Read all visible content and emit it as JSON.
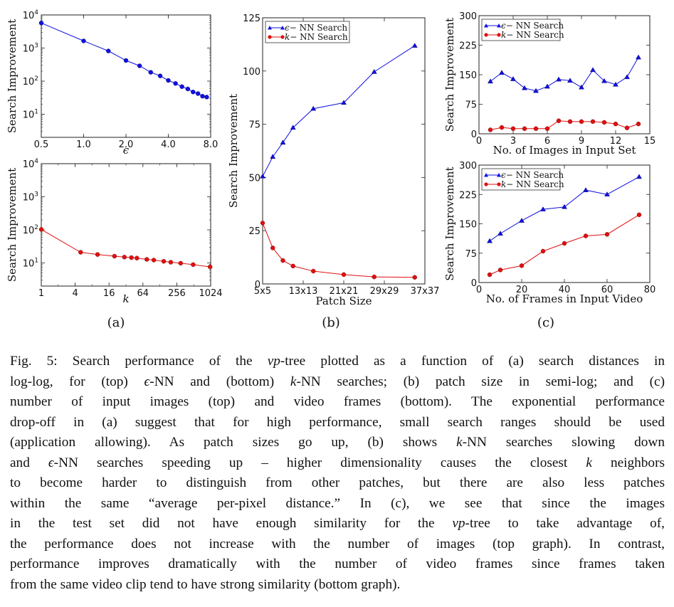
{
  "chart_data": [
    {
      "id": "a-top",
      "type": "line",
      "panel": "(a)",
      "title": "",
      "xlabel": "ϵ",
      "ylabel": "Search Improvement",
      "xscale": "log2",
      "yscale": "log10",
      "xlim": [
        0.5,
        8.0
      ],
      "ylim": [
        2,
        10000
      ],
      "xticks": [
        0.5,
        1.0,
        2.0,
        4.0,
        8.0
      ],
      "xtick_labels": [
        "0.5",
        "1.0",
        "2.0",
        "4.0",
        "8.0"
      ],
      "yticks": [
        10,
        100,
        1000,
        10000
      ],
      "ytick_labels": [
        [
          "10",
          "1"
        ],
        [
          "10",
          "2"
        ],
        [
          "10",
          "3"
        ],
        [
          "10",
          "4"
        ]
      ],
      "grid": false,
      "legend": null,
      "series": [
        {
          "name": "ϵ-NN Search",
          "color": "#1010e0",
          "marker": "circle",
          "x": [
            0.5,
            1.0,
            1.5,
            2.0,
            2.5,
            3.0,
            3.5,
            4.0,
            4.5,
            5.0,
            5.5,
            6.0,
            6.5,
            7.0,
            7.5
          ],
          "values": [
            5700,
            1640,
            815,
            420,
            290,
            185,
            144,
            105,
            85,
            68,
            58,
            47,
            42,
            35,
            33
          ]
        }
      ]
    },
    {
      "id": "a-bottom",
      "type": "line",
      "panel": "(a)",
      "title": "",
      "xlabel": "k",
      "ylabel": "Search Improvement",
      "xscale": "log2",
      "yscale": "log10",
      "xlim": [
        1,
        1024
      ],
      "ylim": [
        2,
        10000
      ],
      "xticks": [
        1,
        4,
        16,
        64,
        256,
        1024
      ],
      "xtick_labels": [
        "1",
        "4",
        "16",
        "64",
        "256",
        "1024"
      ],
      "yticks": [
        10,
        100,
        1000,
        10000
      ],
      "ytick_labels": [
        [
          "10",
          "1"
        ],
        [
          "10",
          "2"
        ],
        [
          "10",
          "3"
        ],
        [
          "10",
          "4"
        ]
      ],
      "grid": false,
      "legend": null,
      "series": [
        {
          "name": "k-NN Search",
          "color": "#e01010",
          "marker": "circle",
          "x": [
            1,
            5,
            10,
            20,
            30,
            40,
            50,
            75,
            100,
            150,
            200,
            300,
            500,
            1000
          ],
          "values": [
            103,
            21,
            18,
            16,
            15,
            14.5,
            14,
            12.8,
            12.2,
            11.2,
            10.5,
            9.8,
            8.9,
            7.6
          ]
        }
      ]
    },
    {
      "id": "b",
      "type": "line",
      "panel": "(b)",
      "title": "",
      "xlabel": "Patch Size",
      "ylabel": "Search Improvement",
      "xscale": "linear (patch side)",
      "yscale": "linear",
      "xlim": [
        5,
        37
      ],
      "ylim": [
        0,
        125
      ],
      "xticks": [
        5,
        13,
        21,
        29,
        37
      ],
      "xtick_labels": [
        "5x5",
        "13x13",
        "21x21",
        "29x29",
        "37x37"
      ],
      "yticks": [
        0,
        25,
        50,
        75,
        100,
        125
      ],
      "ytick_labels": [
        "0",
        "25",
        "50",
        "75",
        "100",
        "125"
      ],
      "grid": false,
      "legend": "top-left",
      "series": [
        {
          "name": "ϵ− NN Search",
          "color": "#1010e0",
          "marker": "triangle",
          "x": [
            5,
            7,
            9,
            11,
            15,
            21,
            27,
            35
          ],
          "values": [
            50.5,
            59.7,
            66.4,
            73.4,
            82.3,
            85.1,
            99.6,
            111.9
          ]
        },
        {
          "name": "k− NN Search",
          "color": "#e01010",
          "marker": "circle",
          "x": [
            5,
            7,
            9,
            11,
            15,
            21,
            27,
            35
          ],
          "values": [
            28.6,
            16.9,
            11.0,
            8.4,
            6.0,
            4.4,
            3.3,
            3.1
          ]
        }
      ]
    },
    {
      "id": "c-top",
      "type": "line",
      "panel": "(c)",
      "title": "",
      "xlabel": "No. of Images in Input Set",
      "ylabel": "Search Improvement",
      "xscale": "linear",
      "yscale": "linear",
      "xlim": [
        0,
        15
      ],
      "ylim": [
        0,
        300
      ],
      "xticks": [
        0,
        3,
        6,
        9,
        12,
        15
      ],
      "xtick_labels": [
        "0",
        "3",
        "6",
        "9",
        "12",
        "15"
      ],
      "yticks": [
        0,
        75,
        150,
        225,
        300
      ],
      "ytick_labels": [
        "0",
        "75",
        "150",
        "225",
        "300"
      ],
      "grid": false,
      "legend": "top-left",
      "series": [
        {
          "name": "ϵ− NN Search",
          "color": "#1010e0",
          "marker": "triangle",
          "x": [
            1,
            2,
            3,
            4,
            5,
            6,
            7,
            8,
            9,
            10,
            11,
            12,
            13,
            14
          ],
          "values": [
            133,
            155,
            139,
            116,
            109,
            120,
            138,
            135,
            118,
            162,
            134,
            125,
            144,
            194
          ]
        },
        {
          "name": "k− NN Search",
          "color": "#e01010",
          "marker": "circle",
          "x": [
            1,
            2,
            3,
            4,
            5,
            6,
            7,
            8,
            9,
            10,
            11,
            12,
            13,
            14
          ],
          "values": [
            10,
            16,
            13,
            13,
            13,
            13,
            33,
            31,
            31,
            31,
            29,
            25,
            15,
            25
          ]
        }
      ]
    },
    {
      "id": "c-bottom",
      "type": "line",
      "panel": "(c)",
      "title": "",
      "xlabel": "No. of Frames in Input Video",
      "ylabel": "Search Improvement",
      "xscale": "linear",
      "yscale": "linear",
      "xlim": [
        0,
        80
      ],
      "ylim": [
        0,
        300
      ],
      "xticks": [
        0,
        20,
        40,
        60,
        80
      ],
      "xtick_labels": [
        "0",
        "20",
        "40",
        "60",
        "80"
      ],
      "yticks": [
        0,
        75,
        150,
        225,
        300
      ],
      "ytick_labels": [
        "0",
        "75",
        "150",
        "225",
        "300"
      ],
      "grid": false,
      "legend": "top-left",
      "series": [
        {
          "name": "ϵ− NN Search",
          "color": "#1010e0",
          "marker": "triangle",
          "x": [
            5,
            10,
            20,
            30,
            40,
            50,
            60,
            75
          ],
          "values": [
            106,
            125,
            158,
            187,
            193,
            236,
            225,
            270
          ]
        },
        {
          "name": "k− NN Search",
          "color": "#e01010",
          "marker": "circle",
          "x": [
            5,
            10,
            20,
            30,
            40,
            50,
            60,
            75
          ],
          "values": [
            20,
            32,
            43,
            80,
            100,
            119,
            123,
            173
          ]
        }
      ]
    }
  ],
  "panel_labels": {
    "a": "(a)",
    "b": "(b)",
    "c": "(c)"
  },
  "caption": {
    "lines": [
      [
        {
          "t": "Fig. 5: Search performance of the "
        },
        {
          "t": "vp",
          "i": true
        },
        {
          "t": "-tree plotted as a function of (a) search distances in"
        }
      ],
      [
        {
          "t": "log-log, for (top) "
        },
        {
          "t": "ϵ",
          "i": true
        },
        {
          "t": "-NN and (bottom) "
        },
        {
          "t": "k",
          "i": true
        },
        {
          "t": "-NN searches; (b) patch size in semi-log; and (c)"
        }
      ],
      [
        {
          "t": "number of input images (top) and video frames (bottom). The exponential performance"
        }
      ],
      [
        {
          "t": "drop-off in (a) suggest that for high performance, small search ranges should be used"
        }
      ],
      [
        {
          "t": "(application allowing). As patch sizes go up, (b) shows "
        },
        {
          "t": "k",
          "i": true
        },
        {
          "t": "-NN searches slowing down"
        }
      ],
      [
        {
          "t": "and "
        },
        {
          "t": "ϵ",
          "i": true
        },
        {
          "t": "-NN searches speeding up – higher dimensionality causes the closest "
        },
        {
          "t": "k",
          "i": true
        },
        {
          "t": " neighbors"
        }
      ],
      [
        {
          "t": "to become harder to distinguish from other patches, but there are also less patches"
        }
      ],
      [
        {
          "t": "within the same “average per-pixel distance.” In (c), we see that since the images"
        }
      ],
      [
        {
          "t": "in the test set did not have enough similarity for the "
        },
        {
          "t": "vp",
          "i": true
        },
        {
          "t": "-tree to take advantage of,"
        }
      ],
      [
        {
          "t": "the performance does not increase with the number of images (top graph). In contrast,"
        }
      ],
      [
        {
          "t": "performance improves dramatically with the number of video frames since frames taken"
        }
      ],
      [
        {
          "t": "from the same video clip tend to have strong similarity (bottom graph)."
        }
      ]
    ]
  }
}
